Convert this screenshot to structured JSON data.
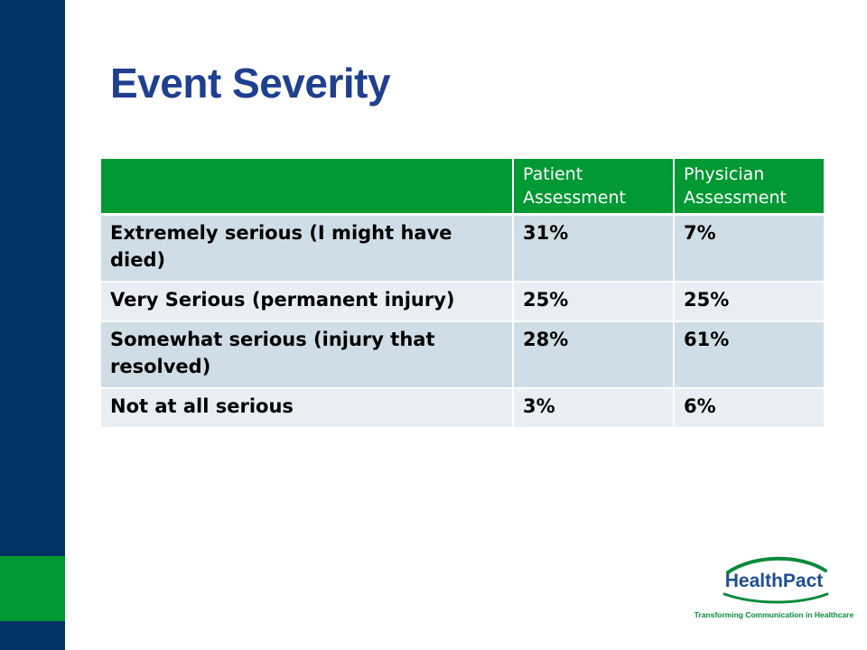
{
  "slide": {
    "title": "Event Severity"
  },
  "table": {
    "headers": [
      "",
      "Patient Assessment",
      "Physician Assessment"
    ],
    "rows": [
      {
        "label": "Extremely serious (I might have died)",
        "patient": "31%",
        "physician": "7%"
      },
      {
        "label": "Very Serious (permanent injury)",
        "patient": "25%",
        "physician": "25%"
      },
      {
        "label": "Somewhat serious (injury that resolved)",
        "patient": "28%",
        "physician": "61%"
      },
      {
        "label": "Not at all serious",
        "patient": "3%",
        "physician": "6%"
      }
    ]
  },
  "logo": {
    "name": "HealthPact",
    "tagline": "Transforming Communication in Healthcare"
  },
  "colors": {
    "navy": "#003366",
    "green": "#009933",
    "title_blue": "#1f3f8f",
    "row_dark": "#cfdde6",
    "row_light": "#e8eef3"
  }
}
